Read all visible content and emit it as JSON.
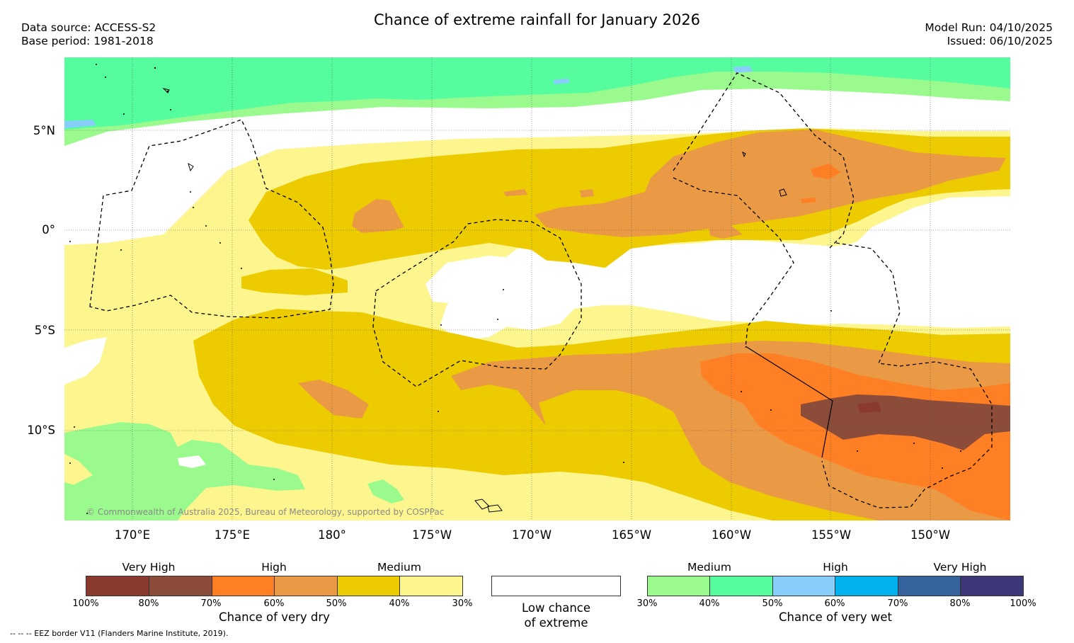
{
  "header": {
    "title": "Chance of extreme rainfall for January 2026",
    "data_source": "Data source: ACCESS-S2",
    "base_period": "Base period: 1981-2018",
    "model_run": "Model Run: 04/10/2025",
    "issued": "Issued: 06/10/2025"
  },
  "map": {
    "lat_labels": [
      "5°N",
      "0°",
      "5°S",
      "10°S"
    ],
    "lon_labels": [
      "170°E",
      "175°E",
      "180°",
      "175°W",
      "170°W",
      "165°W",
      "160°W",
      "155°W",
      "150°W"
    ],
    "copyright": "© Commonwealth of Australia 2025, Bureau of Meteorology, supported by COSPPac"
  },
  "legend_dry": {
    "categories": [
      "Very High",
      "High",
      "Medium"
    ],
    "ticks": [
      "100%",
      "80%",
      "70%",
      "60%",
      "50%",
      "40%",
      "30%"
    ],
    "caption": "Chance of very dry",
    "colors": [
      "#8b3a30",
      "#8b4c3a",
      "#ff7f24",
      "#ea9a45",
      "#eccb00",
      "#fdf58d"
    ]
  },
  "legend_low": {
    "line1": "Low chance",
    "line2": "of extreme"
  },
  "legend_wet": {
    "categories": [
      "Medium",
      "High",
      "Very High"
    ],
    "ticks": [
      "30%",
      "40%",
      "50%",
      "60%",
      "70%",
      "80%",
      "100%"
    ],
    "caption": "Chance of very wet",
    "colors": [
      "#9afa8e",
      "#55fd9e",
      "#87cefa",
      "#00b1ee",
      "#36639e",
      "#3c3778"
    ]
  },
  "footnote": "-- -- -- EEZ border V11 (Flanders Marine Institute, 2019)."
}
